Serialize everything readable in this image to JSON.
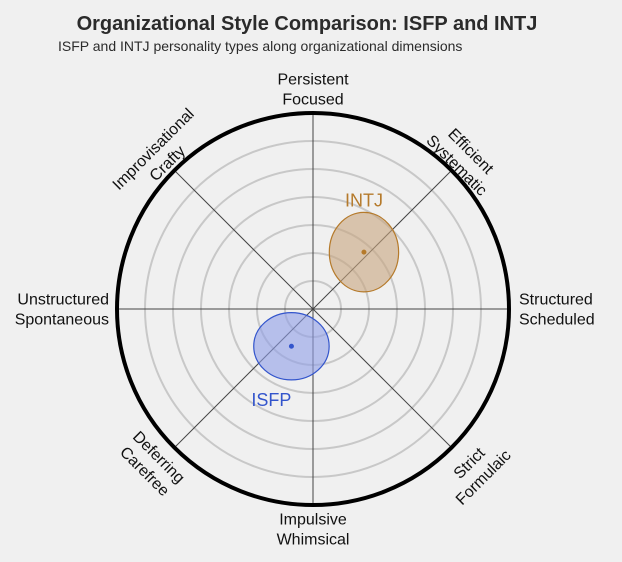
{
  "chart_data": {
    "type": "radar-ellipse",
    "title": "Organizational Style Comparison: ISFP and INTJ",
    "subtitle": "ISFP and INTJ personality types along organizational dimensions",
    "grid": true,
    "axes": {
      "north": [
        "Persistent",
        "Focused"
      ],
      "northeast": [
        "Efficient",
        "Systematic"
      ],
      "east": [
        "Structured",
        "Scheduled"
      ],
      "southeast": [
        "Strict",
        "Formulaic"
      ],
      "south": [
        "Impulsive",
        "Whimsical"
      ],
      "southwest": [
        "Deferring",
        "Carefree"
      ],
      "west": [
        "Unstructured",
        "Spontaneous"
      ],
      "northwest": [
        "Improvisational",
        "Crafty"
      ]
    },
    "ring_count": 6,
    "series": [
      {
        "name": "INTJ",
        "x": 0.26,
        "y": 0.29,
        "spread_x": 0.34,
        "spread_y": 0.39,
        "fill": "#c8a57f",
        "stroke": "#b57a2b",
        "label_color": "#b57a2b"
      },
      {
        "name": "ISFP",
        "x": -0.11,
        "y": -0.19,
        "spread_x": 0.37,
        "spread_y": 0.33,
        "fill": "#8f9fe8",
        "stroke": "#3355cc",
        "label_color": "#3355cc"
      }
    ]
  }
}
